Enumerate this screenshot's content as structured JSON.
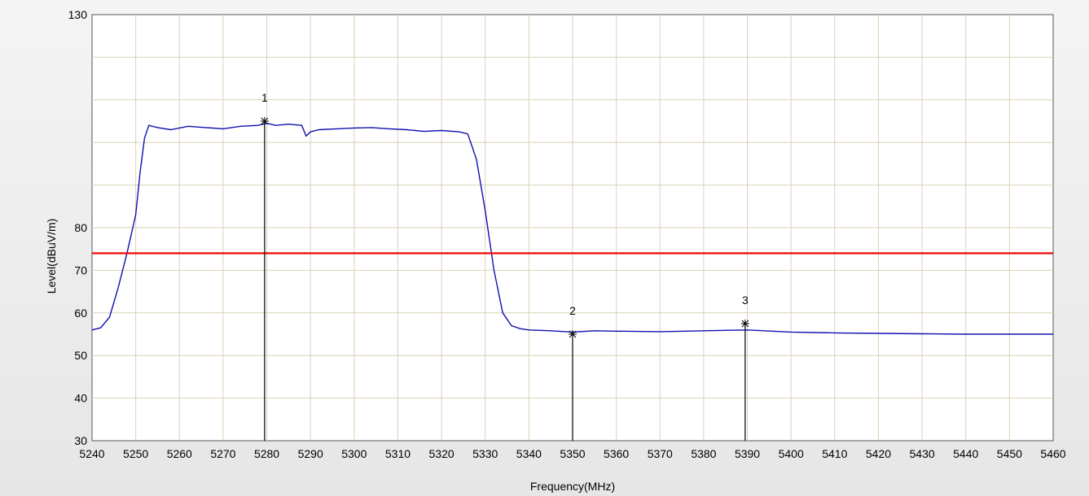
{
  "chart_data": {
    "type": "line",
    "xlabel": "Frequency(MHz)",
    "ylabel": "Level(dBuV/m)",
    "xlim": [
      5240,
      5460
    ],
    "ylim": [
      30,
      130
    ],
    "x_ticks": [
      5240,
      5250,
      5260,
      5270,
      5280,
      5290,
      5300,
      5310,
      5320,
      5330,
      5340,
      5350,
      5360,
      5370,
      5380,
      5390,
      5400,
      5410,
      5420,
      5430,
      5440,
      5450,
      5460
    ],
    "y_ticks": [
      30,
      40,
      50,
      60,
      70,
      80,
      130
    ],
    "grid": true,
    "series": [
      {
        "color": "#1010b0",
        "x": [
          5240,
          5242,
          5244,
          5246,
          5248,
          5250,
          5251,
          5252,
          5253,
          5255,
          5258,
          5262,
          5266,
          5270,
          5274,
          5278,
          5280,
          5282,
          5285,
          5288,
          5289,
          5290,
          5292,
          5296,
          5300,
          5304,
          5308,
          5312,
          5316,
          5320,
          5324,
          5326,
          5328,
          5330,
          5332,
          5334,
          5336,
          5338,
          5340,
          5345,
          5350,
          5355,
          5360,
          5370,
          5380,
          5390,
          5400,
          5410,
          5420,
          5430,
          5440,
          5450,
          5460
        ],
        "values": [
          56,
          56.5,
          59,
          66,
          74,
          83,
          93,
          101,
          104,
          103.5,
          103,
          103.8,
          103.5,
          103.2,
          103.8,
          104,
          104.5,
          104,
          104.3,
          104,
          101.5,
          102.5,
          103,
          103.2,
          103.4,
          103.5,
          103.2,
          103,
          102.6,
          102.8,
          102.5,
          102,
          96,
          84,
          70,
          60,
          57,
          56.3,
          56,
          55.8,
          55.5,
          55.8,
          55.7,
          55.6,
          55.8,
          56,
          55.5,
          55.3,
          55.2,
          55.1,
          55,
          55,
          55
        ]
      },
      {
        "color": "#ee1111",
        "x": [
          5240,
          5460
        ],
        "values": [
          74,
          74
        ]
      }
    ],
    "markers": [
      {
        "label": "1",
        "x": 5279.5,
        "y": 105
      },
      {
        "label": "2",
        "x": 5350,
        "y": 55
      },
      {
        "label": "3",
        "x": 5389.5,
        "y": 57.5
      }
    ]
  }
}
